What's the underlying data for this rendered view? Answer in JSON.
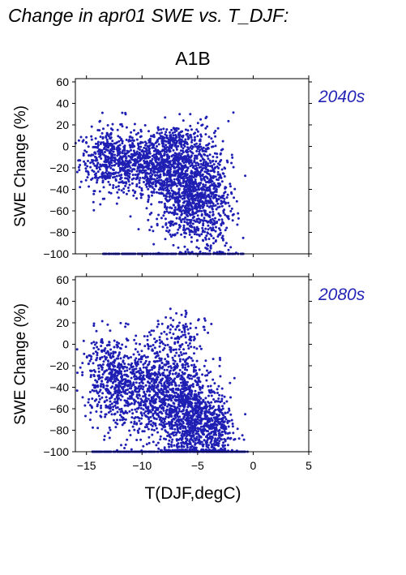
{
  "title": "Change in apr01 SWE vs. T_DJF:",
  "scenario": "A1B",
  "xlabel": "T(DJF,degC)",
  "colors": {
    "points": "#1f1fb4",
    "period_label": "#2323b4"
  },
  "chart_data": [
    {
      "type": "scatter",
      "panel_label": "2040s",
      "xlabel": "",
      "ylabel": "SWE Change (%)",
      "xlim": [
        -16,
        5
      ],
      "ylim": [
        -100,
        63
      ],
      "x_ticks": [
        -15,
        -10,
        -5,
        0,
        5
      ],
      "y_ticks": [
        -100,
        -80,
        -60,
        -40,
        -20,
        0,
        20,
        40,
        60
      ],
      "x_tick_labels_visible": false,
      "clusters": [
        {
          "x_mean": -13.0,
          "x_sd": 1.3,
          "y_mean": -12,
          "y_sd": 14,
          "n": 420
        },
        {
          "x_mean": -9.0,
          "x_sd": 1.8,
          "y_mean": -18,
          "y_sd": 14,
          "n": 700
        },
        {
          "x_mean": -6.0,
          "x_sd": 1.3,
          "y_mean": -38,
          "y_sd": 26,
          "n": 900
        },
        {
          "x_mean": -3.8,
          "x_sd": 1.0,
          "y_mean": -50,
          "y_sd": 28,
          "n": 350
        },
        {
          "x_mean": -7.0,
          "x_sd": 1.0,
          "y_mean": 8,
          "y_sd": 5,
          "n": 90
        }
      ],
      "floor_points": {
        "y": -100,
        "x_range": [
          -13.5,
          -0.8
        ],
        "n": 200
      }
    },
    {
      "type": "scatter",
      "panel_label": "2080s",
      "xlabel": "T(DJF,degC)",
      "ylabel": "SWE Change (%)",
      "xlim": [
        -16,
        5
      ],
      "ylim": [
        -100,
        63
      ],
      "x_ticks": [
        -15,
        -10,
        -5,
        0,
        5
      ],
      "y_ticks": [
        -100,
        -80,
        -60,
        -40,
        -20,
        0,
        20,
        40,
        60
      ],
      "x_tick_labels_visible": true,
      "clusters": [
        {
          "x_mean": -13.0,
          "x_sd": 1.2,
          "y_mean": -30,
          "y_sd": 20,
          "n": 400
        },
        {
          "x_mean": -9.5,
          "x_sd": 1.6,
          "y_mean": -42,
          "y_sd": 22,
          "n": 700
        },
        {
          "x_mean": -6.0,
          "x_sd": 1.2,
          "y_mean": -62,
          "y_sd": 24,
          "n": 900
        },
        {
          "x_mean": -3.5,
          "x_sd": 0.9,
          "y_mean": -78,
          "y_sd": 16,
          "n": 350
        },
        {
          "x_mean": -6.5,
          "x_sd": 1.1,
          "y_mean": 10,
          "y_sd": 10,
          "n": 90
        }
      ],
      "floor_points": {
        "y": -100,
        "x_range": [
          -14.5,
          -0.5
        ],
        "n": 260
      }
    }
  ]
}
